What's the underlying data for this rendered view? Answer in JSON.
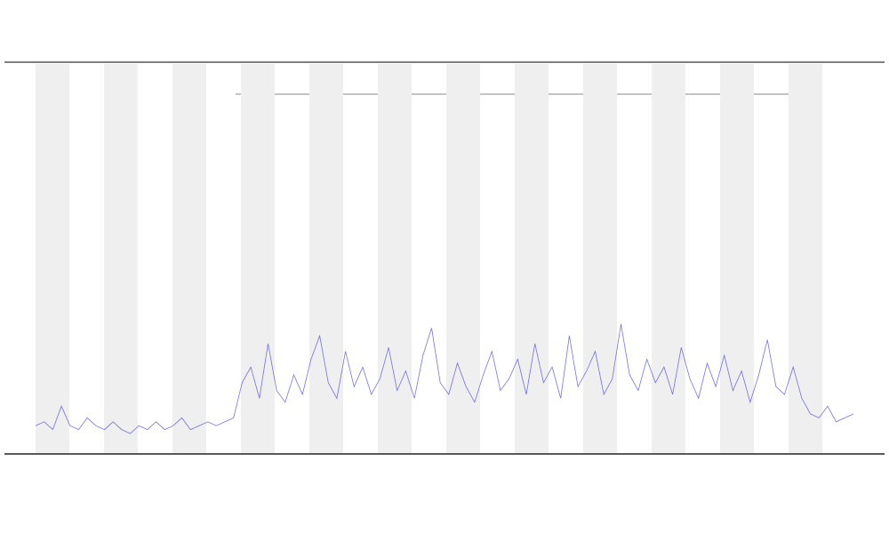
{
  "chart_data": {
    "type": "line",
    "series": [
      {
        "color": "#3b3bd9",
        "values": [
          7,
          8,
          6,
          12,
          7,
          6,
          9,
          7,
          6,
          8,
          6,
          5,
          7,
          6,
          8,
          6,
          7,
          9,
          6,
          7,
          8,
          7,
          8,
          9,
          18,
          22,
          14,
          28,
          16,
          13,
          20,
          15,
          24,
          30,
          18,
          14,
          26,
          17,
          22,
          15,
          19,
          27,
          16,
          21,
          14,
          25,
          32,
          18,
          15,
          23,
          17,
          13,
          20,
          26,
          16,
          19,
          24,
          15,
          28,
          18,
          22,
          14,
          30,
          17,
          21,
          26,
          15,
          19,
          33,
          20,
          16,
          24,
          18,
          22,
          15,
          27,
          19,
          14,
          23,
          17,
          25,
          16,
          21,
          13,
          20,
          29,
          17,
          15,
          22,
          14,
          10,
          9,
          12,
          8,
          9,
          10
        ]
      }
    ],
    "ylim": [
      0,
      100
    ]
  }
}
